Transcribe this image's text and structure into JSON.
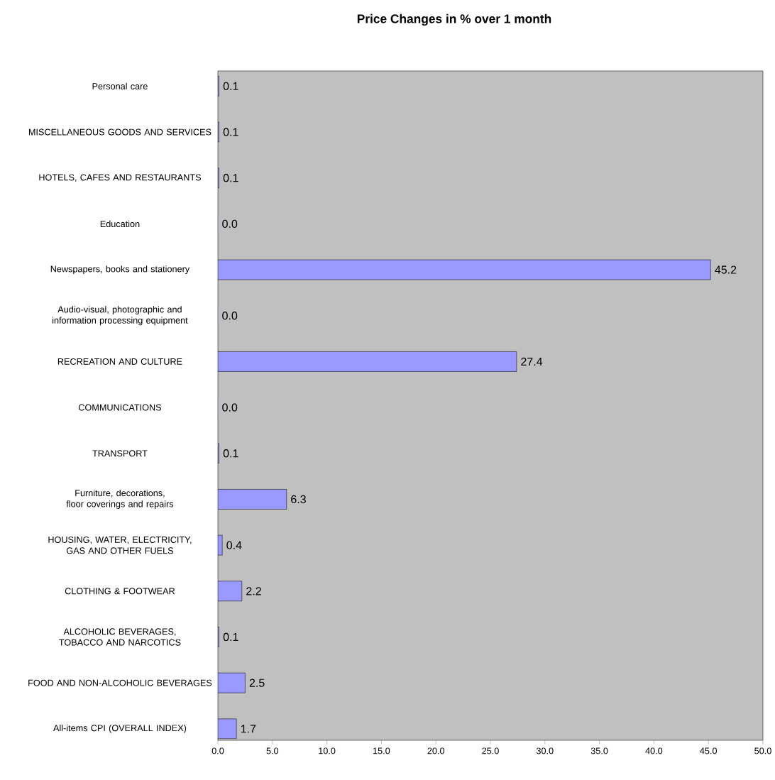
{
  "chart_data": {
    "type": "bar",
    "orientation": "horizontal",
    "title": "**Price Changes in %  over 1 month**",
    "categories": [
      "Personal care",
      "MISCELLANEOUS GOODS AND SERVICES",
      "HOTELS, CAFES AND RESTAURANTS",
      "Education",
      "Newspapers, books and stationery",
      "Audio-visual, photographic and information processing equipment",
      "RECREATION AND CULTURE",
      "COMMUNICATIONS",
      "TRANSPORT",
      "Furniture, decorations, floor coverings and repairs",
      "HOUSING, WATER, ELECTRICITY, GAS AND OTHER FUELS",
      "CLOTHING & FOOTWEAR",
      "ALCOHOLIC BEVERAGES, TOBACCO AND NARCOTICS",
      "FOOD AND NON-ALCOHOLIC BEVERAGES",
      "All-items CPI (OVERALL INDEX)"
    ],
    "values": [
      0.1,
      0.1,
      0.1,
      0.0,
      45.2,
      0.0,
      27.4,
      0.0,
      0.1,
      6.3,
      0.4,
      2.2,
      0.1,
      2.5,
      1.7
    ],
    "value_labels": [
      "0.1",
      "0.1",
      "0.1",
      "0.0",
      "45.2",
      "0.0",
      "27.4",
      "0.0",
      "0.1",
      "6.3",
      "0.4",
      "2.2",
      "0.1",
      "2.5",
      "1.7"
    ],
    "color": "#9999ff",
    "xlim": [
      0,
      50
    ],
    "xticks": [
      {
        "value": 0,
        "label": "0.0"
      },
      {
        "value": 5,
        "label": "5.0"
      },
      {
        "value": 10,
        "label": "10.0"
      },
      {
        "value": 15,
        "label": "15.0"
      },
      {
        "value": 20,
        "label": "20.0"
      },
      {
        "value": 25,
        "label": "25.0"
      },
      {
        "value": 30,
        "label": "30.0"
      },
      {
        "value": 35,
        "label": "35.0"
      },
      {
        "value": 40,
        "label": "40.0"
      },
      {
        "value": 45,
        "label": "45.0"
      },
      {
        "value": 50,
        "label": "50.0"
      }
    ],
    "grid": false
  }
}
